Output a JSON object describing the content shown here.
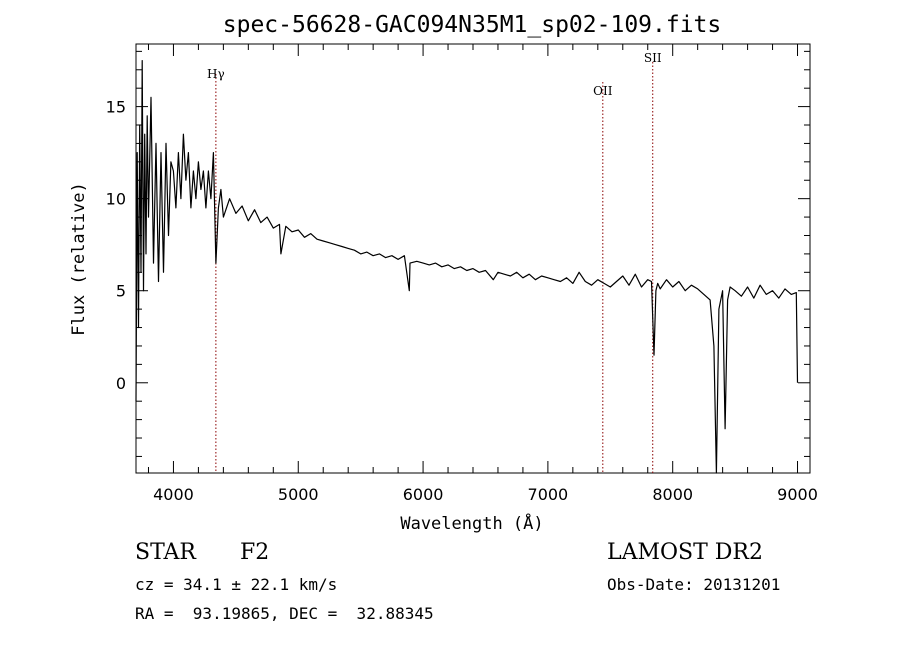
{
  "chart_data": {
    "type": "line",
    "title": "spec-56628-GAC094N35M1_sp02-109.fits",
    "xlabel": "Wavelength (Å)",
    "ylabel": "Flux (relative)",
    "xlim": [
      3700,
      9100
    ],
    "ylim": [
      -4.9,
      18.4
    ],
    "xticks": [
      4000,
      5000,
      6000,
      7000,
      8000,
      9000
    ],
    "yticks": [
      0,
      5,
      10,
      15
    ],
    "grid": false,
    "legend": "none",
    "line_color": "#000000",
    "marker_color": "#8b0000",
    "lines": [
      {
        "label": "Hγ",
        "wavelength": 4340
      },
      {
        "label": "OII",
        "wavelength": 7440
      },
      {
        "label": "SII",
        "wavelength": 7840
      }
    ],
    "series": [
      {
        "x": [
          3700,
          3710,
          3720,
          3730,
          3740,
          3750,
          3760,
          3770,
          3780,
          3790,
          3800,
          3820,
          3840,
          3860,
          3880,
          3900,
          3920,
          3940,
          3960,
          3980,
          4000,
          4020,
          4040,
          4060,
          4080,
          4100,
          4120,
          4140,
          4160,
          4180,
          4200,
          4220,
          4240,
          4260,
          4280,
          4300,
          4320,
          4340,
          4360,
          4380,
          4400,
          4450,
          4500,
          4550,
          4600,
          4650,
          4700,
          4750,
          4800,
          4850,
          4861,
          4900,
          4950,
          5000,
          5050,
          5100,
          5150,
          5200,
          5250,
          5300,
          5350,
          5400,
          5450,
          5500,
          5550,
          5600,
          5650,
          5700,
          5750,
          5800,
          5850,
          5890,
          5895,
          5950,
          6000,
          6050,
          6100,
          6150,
          6200,
          6250,
          6300,
          6350,
          6400,
          6450,
          6500,
          6563,
          6600,
          6650,
          6700,
          6750,
          6800,
          6850,
          6900,
          6950,
          7000,
          7050,
          7100,
          7150,
          7200,
          7250,
          7300,
          7350,
          7400,
          7450,
          7500,
          7550,
          7600,
          7650,
          7700,
          7750,
          7800,
          7830,
          7850,
          7865,
          7880,
          7900,
          7950,
          8000,
          8050,
          8100,
          8150,
          8200,
          8250,
          8300,
          8330,
          8350,
          8370,
          8400,
          8420,
          8440,
          8460,
          8500,
          8550,
          8600,
          8650,
          8700,
          8750,
          8800,
          8850,
          8900,
          8950,
          8990,
          9000
        ],
        "y": [
          -1.0,
          12.5,
          3.0,
          14.0,
          6.0,
          17.5,
          5.0,
          13.5,
          7.0,
          14.5,
          9.0,
          15.5,
          6.5,
          13.0,
          5.5,
          12.5,
          6.0,
          13.0,
          8.0,
          12.0,
          11.5,
          9.5,
          12.5,
          10.0,
          13.5,
          11.0,
          12.5,
          9.5,
          11.5,
          10.0,
          12.0,
          10.5,
          11.5,
          9.5,
          11.5,
          10.0,
          12.5,
          6.5,
          9.5,
          10.5,
          9.0,
          10.0,
          9.2,
          9.6,
          8.8,
          9.4,
          8.7,
          9.0,
          8.4,
          8.6,
          7.0,
          8.5,
          8.2,
          8.3,
          7.9,
          8.1,
          7.8,
          7.7,
          7.6,
          7.5,
          7.4,
          7.3,
          7.2,
          7.0,
          7.1,
          6.9,
          7.0,
          6.8,
          6.9,
          6.7,
          6.9,
          5.0,
          6.5,
          6.6,
          6.5,
          6.4,
          6.5,
          6.3,
          6.4,
          6.2,
          6.3,
          6.1,
          6.2,
          6.0,
          6.1,
          5.6,
          6.0,
          5.9,
          5.8,
          6.0,
          5.7,
          5.9,
          5.6,
          5.8,
          5.7,
          5.6,
          5.5,
          5.7,
          5.4,
          6.0,
          5.5,
          5.3,
          5.6,
          5.4,
          5.2,
          5.5,
          5.8,
          5.3,
          5.9,
          5.2,
          5.6,
          5.5,
          1.5,
          5.0,
          5.4,
          5.1,
          5.6,
          5.2,
          5.5,
          5.0,
          5.3,
          5.1,
          4.8,
          4.5,
          2.0,
          -4.9,
          4.0,
          5.0,
          -2.5,
          4.5,
          5.2,
          5.0,
          4.7,
          5.2,
          4.6,
          5.3,
          4.8,
          5.0,
          4.6,
          5.1,
          4.8,
          4.9,
          0.0
        ]
      }
    ]
  },
  "footer": {
    "object_class": "STAR",
    "subclass": "F2",
    "survey": "LAMOST DR2",
    "redshift_text": "cz = 34.1 ± 22.1 km/s",
    "obs_date_text": "Obs-Date: 20131201",
    "coords_text": "RA =  93.19865, DEC =  32.88345"
  }
}
